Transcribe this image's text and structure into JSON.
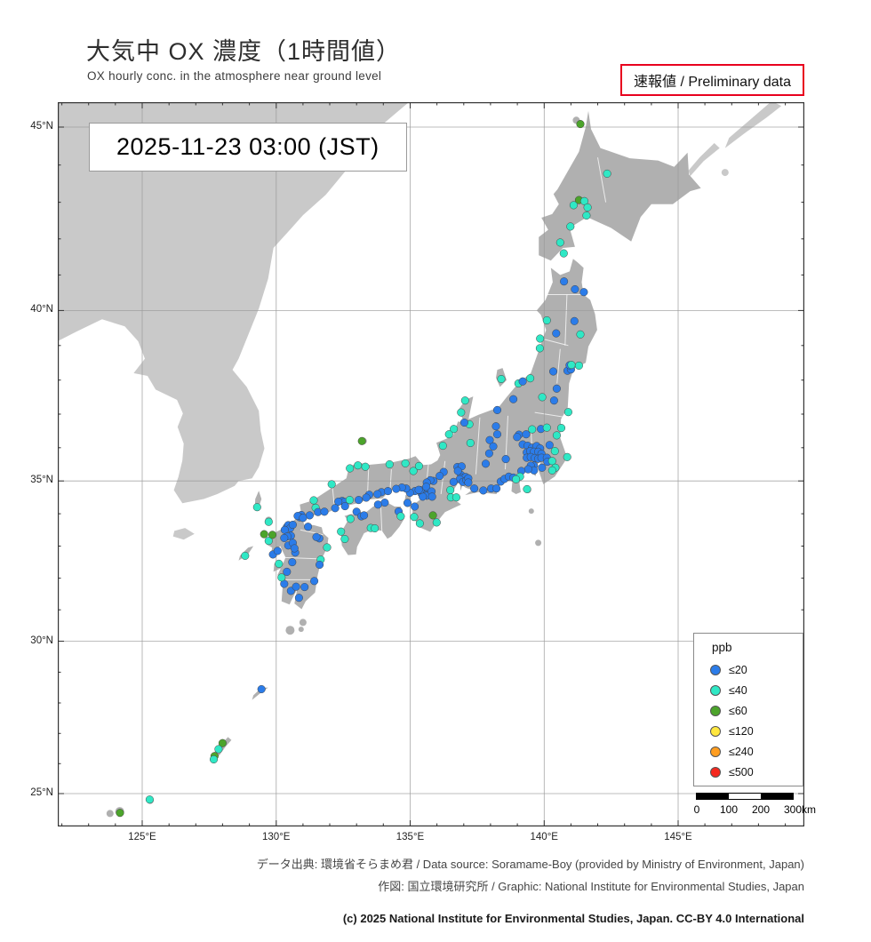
{
  "title": {
    "main": "大気中 OX 濃度（1時間値）",
    "sub": "OX hourly conc. in the atmosphere near ground level"
  },
  "preliminary": "速報値 / Preliminary data",
  "timestamp": "2025-11-23  03:00 (JST)",
  "legend": {
    "title": "ppb",
    "items": [
      {
        "label": "≤20",
        "color": "#2b7ce9"
      },
      {
        "label": "≤40",
        "color": "#2fe8c5"
      },
      {
        "label": "≤60",
        "color": "#4ca42b"
      },
      {
        "label": "≤120",
        "color": "#ffe73e"
      },
      {
        "label": "≤240",
        "color": "#ff9d1f"
      },
      {
        "label": "≤500",
        "color": "#f5281e"
      }
    ]
  },
  "scalebar": {
    "labels": [
      "0",
      "100",
      "200",
      "300"
    ],
    "unit": "km"
  },
  "map": {
    "japan_land_color": "#b0b0b0",
    "foreign_land_color": "#c9c9c9",
    "grid_color": "#9a9a9a",
    "frame_color": "#333333",
    "lat_ticks": [
      {
        "label": "45°N",
        "value": 45
      },
      {
        "label": "40°N",
        "value": 40
      },
      {
        "label": "35°N",
        "value": 35
      },
      {
        "label": "30°N",
        "value": 30
      },
      {
        "label": "25°N",
        "value": 25
      }
    ],
    "lon_ticks": [
      {
        "label": "125°E",
        "value": 125
      },
      {
        "label": "130°E",
        "value": 130
      },
      {
        "label": "135°E",
        "value": 135
      },
      {
        "label": "140°E",
        "value": 140
      },
      {
        "label": "145°E",
        "value": 145
      }
    ]
  },
  "footer": {
    "source": "データ出典: 環境省そらまめ君 / Data source: Soramame-Boy (provided by Ministry of Environment, Japan)",
    "graphic": "作図: 国立環境研究所 / Graphic: National Institute for Environmental Studies, Japan",
    "copyright": "(c) 2025 National Institute for Environmental Studies, Japan. CC-BY 4.0 International"
  },
  "chart_data": {
    "type": "scatter",
    "title": "大気中 OX 濃度（1時間値）",
    "datetime": "2025-11-23 03:00 (JST)",
    "unit": "ppb",
    "projection": "mercator",
    "lon_range": [
      121.8,
      149.7
    ],
    "lat_range": [
      24.5,
      45.7
    ],
    "legend_position": "bottom-right",
    "categories": [
      {
        "key": "b",
        "label": "≤20",
        "color": "#2b7ce9"
      },
      {
        "key": "c",
        "label": "≤40",
        "color": "#2fe8c5"
      },
      {
        "key": "g",
        "label": "≤60",
        "color": "#4ca42b"
      },
      {
        "key": "y",
        "label": "≤120",
        "color": "#ffe73e"
      },
      {
        "key": "o",
        "label": "≤240",
        "color": "#ff9d1f"
      },
      {
        "key": "r",
        "label": "≤500",
        "color": "#f5281e"
      }
    ],
    "points": [
      [
        141.35,
        45.08,
        "g"
      ],
      [
        142.35,
        43.77,
        "c"
      ],
      [
        141.3,
        43.06,
        "g"
      ],
      [
        141.5,
        43.03,
        "c"
      ],
      [
        141.62,
        42.86,
        "c"
      ],
      [
        141.1,
        42.92,
        "c"
      ],
      [
        140.98,
        42.34,
        "c"
      ],
      [
        141.58,
        42.64,
        "c"
      ],
      [
        140.6,
        41.9,
        "c"
      ],
      [
        140.73,
        41.6,
        "c"
      ],
      [
        140.74,
        40.82,
        "b"
      ],
      [
        141.48,
        40.52,
        "b"
      ],
      [
        141.15,
        40.6,
        "b"
      ],
      [
        140.1,
        39.72,
        "c"
      ],
      [
        141.13,
        39.7,
        "b"
      ],
      [
        141.35,
        39.32,
        "c"
      ],
      [
        139.85,
        39.2,
        "c"
      ],
      [
        140.45,
        39.35,
        "b"
      ],
      [
        139.84,
        38.92,
        "c"
      ],
      [
        140.34,
        38.25,
        "b"
      ],
      [
        140.87,
        38.27,
        "b"
      ],
      [
        141.0,
        38.31,
        "b"
      ],
      [
        140.95,
        38.43,
        "b"
      ],
      [
        141.02,
        38.44,
        "c"
      ],
      [
        141.3,
        38.42,
        "c"
      ],
      [
        140.47,
        37.75,
        "b"
      ],
      [
        140.37,
        37.4,
        "b"
      ],
      [
        139.93,
        37.5,
        "c"
      ],
      [
        140.9,
        37.06,
        "c"
      ],
      [
        139.04,
        37.9,
        "c"
      ],
      [
        139.2,
        37.96,
        "b"
      ],
      [
        138.85,
        37.44,
        "b"
      ],
      [
        138.25,
        37.12,
        "b"
      ],
      [
        139.48,
        38.05,
        "c"
      ],
      [
        138.4,
        38.03,
        "c"
      ],
      [
        139.06,
        36.39,
        "b"
      ],
      [
        138.99,
        36.32,
        "b"
      ],
      [
        139.33,
        36.4,
        "b"
      ],
      [
        139.55,
        36.55,
        "c"
      ],
      [
        139.88,
        36.56,
        "b"
      ],
      [
        140.1,
        36.6,
        "c"
      ],
      [
        140.47,
        36.37,
        "c"
      ],
      [
        140.64,
        36.59,
        "c"
      ],
      [
        139.2,
        36.1,
        "b"
      ],
      [
        139.38,
        36.06,
        "b"
      ],
      [
        139.55,
        36.0,
        "b"
      ],
      [
        139.72,
        36.05,
        "b"
      ],
      [
        139.85,
        35.98,
        "b"
      ],
      [
        140.2,
        36.08,
        "b"
      ],
      [
        140.4,
        35.9,
        "c"
      ],
      [
        139.35,
        35.86,
        "b"
      ],
      [
        139.48,
        35.9,
        "b"
      ],
      [
        139.62,
        35.88,
        "b"
      ],
      [
        139.78,
        35.88,
        "b"
      ],
      [
        139.9,
        35.82,
        "b"
      ],
      [
        139.35,
        35.7,
        "b"
      ],
      [
        139.5,
        35.72,
        "b"
      ],
      [
        139.65,
        35.69,
        "b"
      ],
      [
        139.78,
        35.67,
        "b"
      ],
      [
        139.9,
        35.7,
        "b"
      ],
      [
        140.1,
        35.7,
        "b"
      ],
      [
        140.12,
        35.58,
        "b"
      ],
      [
        140.3,
        35.6,
        "c"
      ],
      [
        140.42,
        35.4,
        "c"
      ],
      [
        140.86,
        35.72,
        "c"
      ],
      [
        140.3,
        35.32,
        "c"
      ],
      [
        139.92,
        35.4,
        "b"
      ],
      [
        139.62,
        35.46,
        "b"
      ],
      [
        139.5,
        35.46,
        "b"
      ],
      [
        139.62,
        35.32,
        "b"
      ],
      [
        139.4,
        35.35,
        "b"
      ],
      [
        139.15,
        35.3,
        "b"
      ],
      [
        139.1,
        35.13,
        "c"
      ],
      [
        138.57,
        35.66,
        "b"
      ],
      [
        138.2,
        36.64,
        "b"
      ],
      [
        138.25,
        36.4,
        "b"
      ],
      [
        137.97,
        36.23,
        "b"
      ],
      [
        138.1,
        36.04,
        "b"
      ],
      [
        137.95,
        35.83,
        "b"
      ],
      [
        137.82,
        35.52,
        "b"
      ],
      [
        138.38,
        34.98,
        "b"
      ],
      [
        138.52,
        35.06,
        "b"
      ],
      [
        138.68,
        35.13,
        "b"
      ],
      [
        138.85,
        35.1,
        "b"
      ],
      [
        138.95,
        35.05,
        "c"
      ],
      [
        137.73,
        34.71,
        "b"
      ],
      [
        138.02,
        34.77,
        "b"
      ],
      [
        138.22,
        34.77,
        "b"
      ],
      [
        137.21,
        36.7,
        "c"
      ],
      [
        137.02,
        36.75,
        "b"
      ],
      [
        136.9,
        37.05,
        "c"
      ],
      [
        137.05,
        37.4,
        "c"
      ],
      [
        136.63,
        36.56,
        "c"
      ],
      [
        136.45,
        36.4,
        "c"
      ],
      [
        136.22,
        36.06,
        "c"
      ],
      [
        137.25,
        36.14,
        "c"
      ],
      [
        136.76,
        35.42,
        "b"
      ],
      [
        136.92,
        35.44,
        "b"
      ],
      [
        136.9,
        35.18,
        "b"
      ],
      [
        136.97,
        35.1,
        "b"
      ],
      [
        137.07,
        35.12,
        "b"
      ],
      [
        136.85,
        35.05,
        "b"
      ],
      [
        136.97,
        34.97,
        "b"
      ],
      [
        137.1,
        35.02,
        "b"
      ],
      [
        137.17,
        35.08,
        "b"
      ],
      [
        136.78,
        35.3,
        "b"
      ],
      [
        137.17,
        34.95,
        "b"
      ],
      [
        137.39,
        34.77,
        "b"
      ],
      [
        136.62,
        34.97,
        "b"
      ],
      [
        136.5,
        34.72,
        "c"
      ],
      [
        136.52,
        34.5,
        "c"
      ],
      [
        136.72,
        34.5,
        "c"
      ],
      [
        135.87,
        35.0,
        "b"
      ],
      [
        136.25,
        35.27,
        "b"
      ],
      [
        136.1,
        35.15,
        "b"
      ],
      [
        135.75,
        35.02,
        "b"
      ],
      [
        135.62,
        34.95,
        "b"
      ],
      [
        135.12,
        35.3,
        "c"
      ],
      [
        135.33,
        35.45,
        "c"
      ],
      [
        135.5,
        34.69,
        "b"
      ],
      [
        135.6,
        34.68,
        "b"
      ],
      [
        135.52,
        34.6,
        "b"
      ],
      [
        135.42,
        34.62,
        "b"
      ],
      [
        135.62,
        34.55,
        "b"
      ],
      [
        135.47,
        34.52,
        "b"
      ],
      [
        135.38,
        34.72,
        "b"
      ],
      [
        135.6,
        34.82,
        "b"
      ],
      [
        135.18,
        34.69,
        "b"
      ],
      [
        135.32,
        34.73,
        "b"
      ],
      [
        134.99,
        34.64,
        "b"
      ],
      [
        134.85,
        34.77,
        "b"
      ],
      [
        134.69,
        34.8,
        "b"
      ],
      [
        134.48,
        34.76,
        "b"
      ],
      [
        134.82,
        35.53,
        "c"
      ],
      [
        135.8,
        34.68,
        "b"
      ],
      [
        135.82,
        34.52,
        "b"
      ],
      [
        135.17,
        34.22,
        "b"
      ],
      [
        135.15,
        33.9,
        "c"
      ],
      [
        135.36,
        33.7,
        "c"
      ],
      [
        135.99,
        33.73,
        "c"
      ],
      [
        135.85,
        33.95,
        "g"
      ],
      [
        134.9,
        34.33,
        "b"
      ],
      [
        133.93,
        34.66,
        "b"
      ],
      [
        133.78,
        34.6,
        "b"
      ],
      [
        133.47,
        34.58,
        "b"
      ],
      [
        134.17,
        34.69,
        "b"
      ],
      [
        133.36,
        34.49,
        "b"
      ],
      [
        133.08,
        34.42,
        "b"
      ],
      [
        132.46,
        34.39,
        "b"
      ],
      [
        132.55,
        34.36,
        "b"
      ],
      [
        132.32,
        34.37,
        "b"
      ],
      [
        132.57,
        34.23,
        "b"
      ],
      [
        132.74,
        34.42,
        "c"
      ],
      [
        132.2,
        34.17,
        "b"
      ],
      [
        131.47,
        34.18,
        "c"
      ],
      [
        131.56,
        34.05,
        "b"
      ],
      [
        131.8,
        34.06,
        "b"
      ],
      [
        131.25,
        33.95,
        "b"
      ],
      [
        130.94,
        33.96,
        "b"
      ],
      [
        131.4,
        34.41,
        "c"
      ],
      [
        132.07,
        34.9,
        "c"
      ],
      [
        132.75,
        35.38,
        "c"
      ],
      [
        133.05,
        35.47,
        "c"
      ],
      [
        133.33,
        35.43,
        "c"
      ],
      [
        134.23,
        35.5,
        "c"
      ],
      [
        133.2,
        36.2,
        "g"
      ],
      [
        134.05,
        34.34,
        "b"
      ],
      [
        133.8,
        34.28,
        "b"
      ],
      [
        134.57,
        34.07,
        "b"
      ],
      [
        134.65,
        33.92,
        "c"
      ],
      [
        133.53,
        33.56,
        "c"
      ],
      [
        133.68,
        33.55,
        "c"
      ],
      [
        132.77,
        33.84,
        "c"
      ],
      [
        133.0,
        34.06,
        "b"
      ],
      [
        133.18,
        33.92,
        "b"
      ],
      [
        133.28,
        33.95,
        "b"
      ],
      [
        132.56,
        33.22,
        "c"
      ],
      [
        132.42,
        33.45,
        "c"
      ],
      [
        130.88,
        33.89,
        "b"
      ],
      [
        130.8,
        33.93,
        "b"
      ],
      [
        131.0,
        33.87,
        "b"
      ],
      [
        130.4,
        33.59,
        "b"
      ],
      [
        130.45,
        33.65,
        "b"
      ],
      [
        130.52,
        33.55,
        "b"
      ],
      [
        130.32,
        33.5,
        "b"
      ],
      [
        130.62,
        33.66,
        "b"
      ],
      [
        130.55,
        33.32,
        "b"
      ],
      [
        130.42,
        33.3,
        "b"
      ],
      [
        130.3,
        33.25,
        "b"
      ],
      [
        130.45,
        33.02,
        "b"
      ],
      [
        130.62,
        33.1,
        "b"
      ],
      [
        129.88,
        32.74,
        "b"
      ],
      [
        130.05,
        32.85,
        "b"
      ],
      [
        129.72,
        33.16,
        "c"
      ],
      [
        129.55,
        33.37,
        "g"
      ],
      [
        129.86,
        33.35,
        "g"
      ],
      [
        128.84,
        32.7,
        "c"
      ],
      [
        129.29,
        34.2,
        "c"
      ],
      [
        129.72,
        33.75,
        "c"
      ],
      [
        130.71,
        32.8,
        "b"
      ],
      [
        130.68,
        32.93,
        "b"
      ],
      [
        130.6,
        32.5,
        "b"
      ],
      [
        130.4,
        32.2,
        "b"
      ],
      [
        130.1,
        32.45,
        "c"
      ],
      [
        131.61,
        33.24,
        "b"
      ],
      [
        131.5,
        33.28,
        "b"
      ],
      [
        131.19,
        33.6,
        "b"
      ],
      [
        131.9,
        32.96,
        "c"
      ],
      [
        131.66,
        32.58,
        "c"
      ],
      [
        131.62,
        32.42,
        "b"
      ],
      [
        131.42,
        31.91,
        "b"
      ],
      [
        131.06,
        31.72,
        "b"
      ],
      [
        130.55,
        31.6,
        "b"
      ],
      [
        130.74,
        31.73,
        "b"
      ],
      [
        130.85,
        31.38,
        "b"
      ],
      [
        130.3,
        31.82,
        "b"
      ],
      [
        130.2,
        32.02,
        "c"
      ],
      [
        139.36,
        34.75,
        "c"
      ],
      [
        129.45,
        28.45,
        "b"
      ],
      [
        128.0,
        26.68,
        "g"
      ],
      [
        127.85,
        26.48,
        "c"
      ],
      [
        127.7,
        26.25,
        "g"
      ],
      [
        127.67,
        26.14,
        "c"
      ],
      [
        125.28,
        24.8,
        "c"
      ],
      [
        124.17,
        24.35,
        "g"
      ]
    ]
  }
}
